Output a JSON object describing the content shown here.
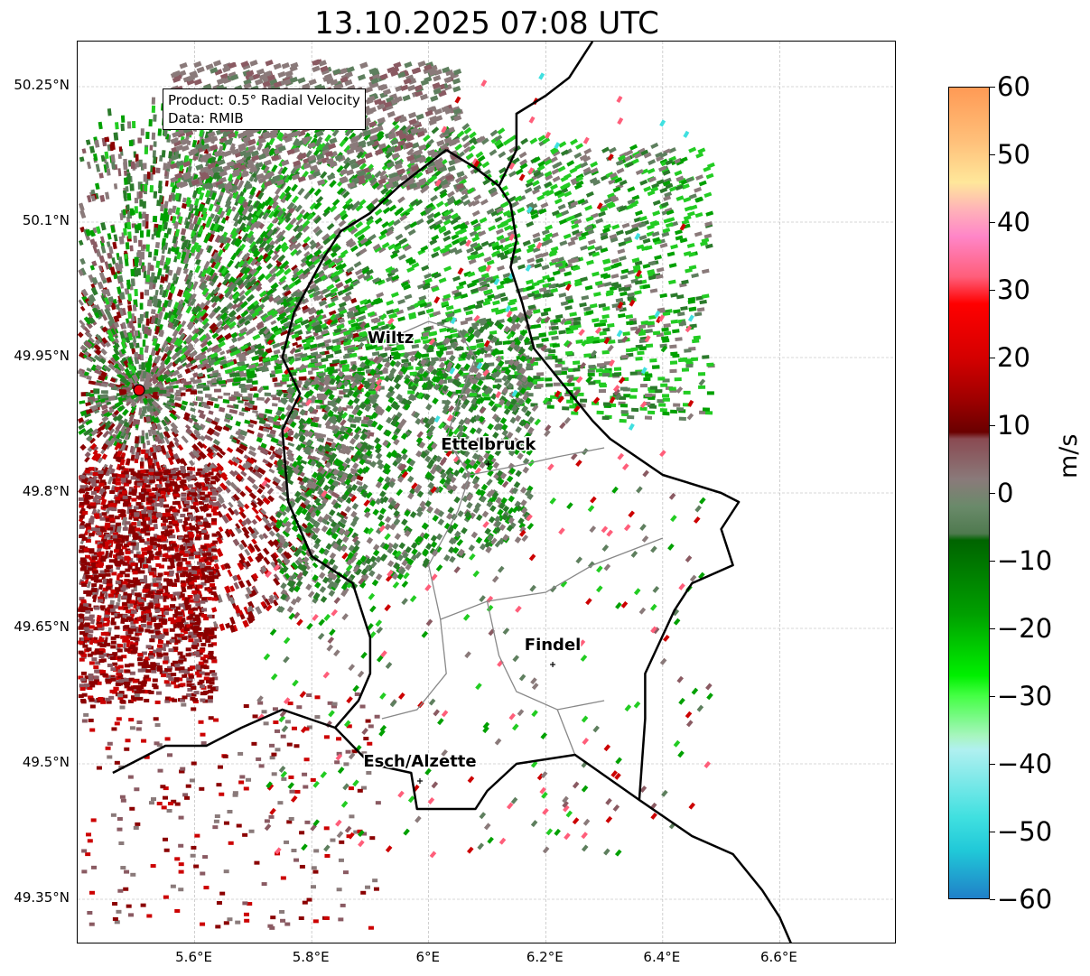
{
  "title": "13.10.2025 07:08 UTC",
  "info": {
    "product": "Product: 0.5° Radial Velocity",
    "data": "Data: RMIB"
  },
  "lat_labels": [
    "50.25°N",
    "50.1°N",
    "49.95°N",
    "49.8°N",
    "49.65°N",
    "49.5°N",
    "49.35°N"
  ],
  "lat_values": [
    50.25,
    50.1,
    49.95,
    49.8,
    49.65,
    49.5,
    49.35
  ],
  "lon_labels": [
    "5.6°E",
    "5.8°E",
    "6°E",
    "6.2°E",
    "6.4°E",
    "6.6°E"
  ],
  "lon_values": [
    5.6,
    5.8,
    6.0,
    6.2,
    6.4,
    6.6
  ],
  "map_extent": {
    "lon_min": 5.4,
    "lon_max": 6.8,
    "lat_min": 49.3,
    "lat_max": 50.3
  },
  "radar_site": {
    "lon": 5.505,
    "lat": 49.914,
    "color": "#e8000b"
  },
  "cities": [
    {
      "name": "Wiltz",
      "lon": 5.935,
      "lat": 49.966
    },
    {
      "name": "Ettelbruck",
      "lon": 6.102,
      "lat": 49.848
    },
    {
      "name": "Findel",
      "lon": 6.212,
      "lat": 49.626
    },
    {
      "name": "Esch/Alzette",
      "lon": 5.985,
      "lat": 49.497
    }
  ],
  "colorbar": {
    "unit": "m/s",
    "ticks": [
      60,
      50,
      40,
      30,
      20,
      10,
      0,
      -10,
      -20,
      -30,
      -40,
      -50,
      -60
    ],
    "tick_labels": [
      "60",
      "50",
      "40",
      "30",
      "20",
      "10",
      "0",
      "−10",
      "−20",
      "−30",
      "−40",
      "−50",
      "−60"
    ],
    "min": -60,
    "max": 60,
    "stops": [
      {
        "v": 60,
        "c": "#ff9a55"
      },
      {
        "v": 52,
        "c": "#ffc07a"
      },
      {
        "v": 46,
        "c": "#ffe79a"
      },
      {
        "v": 42,
        "c": "#ffb3b8"
      },
      {
        "v": 38,
        "c": "#ff86c8"
      },
      {
        "v": 32,
        "c": "#ff5e7a"
      },
      {
        "v": 28,
        "c": "#ff0000"
      },
      {
        "v": 20,
        "c": "#d40000"
      },
      {
        "v": 14,
        "c": "#a00000"
      },
      {
        "v": 9,
        "c": "#6a0000"
      },
      {
        "v": 8,
        "c": "#8a4a52"
      },
      {
        "v": 2,
        "c": "#8a7a7a"
      },
      {
        "v": -2,
        "c": "#6a8a6a"
      },
      {
        "v": -6,
        "c": "#4f7a4f"
      },
      {
        "v": -7,
        "c": "#006400"
      },
      {
        "v": -18,
        "c": "#00a000"
      },
      {
        "v": -27,
        "c": "#00f000"
      },
      {
        "v": -30,
        "c": "#44ff44"
      },
      {
        "v": -36,
        "c": "#a8f5c0"
      },
      {
        "v": -38,
        "c": "#b0f0f0"
      },
      {
        "v": -48,
        "c": "#40e0e0"
      },
      {
        "v": -53,
        "c": "#20c8d8"
      },
      {
        "v": -60,
        "c": "#2080c8"
      }
    ]
  },
  "pixel_colors": {
    "green_light": "#22cc22",
    "green_mid": "#00a000",
    "green_dark": "#2b7a2b",
    "gray_green": "#5e7f5e",
    "gray": "#8a7a7a",
    "mauve": "#8a5a62",
    "dark_red": "#8b0000",
    "red": "#cc0000",
    "pink": "#ff5e7a",
    "cyan": "#40e0e0"
  }
}
